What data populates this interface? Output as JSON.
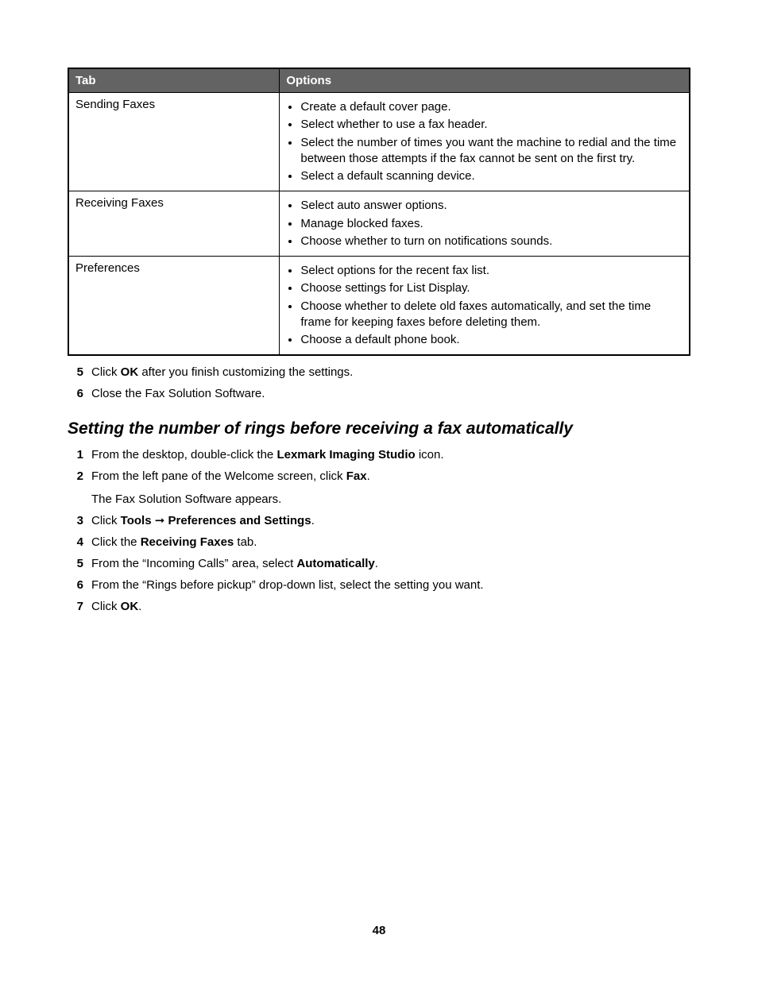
{
  "table": {
    "header_bg": "#636363",
    "header_fg": "#ffffff",
    "border_color": "#000000",
    "columns": [
      "Tab",
      "Options"
    ],
    "rows": [
      {
        "tab": "Sending Faxes",
        "options": [
          "Create a default cover page.",
          "Select whether to use a fax header.",
          "Select the number of times you want the machine to redial and the time between those attempts if the fax cannot be sent on the first try.",
          "Select a default scanning device."
        ]
      },
      {
        "tab": "Receiving Faxes",
        "options": [
          "Select auto answer options.",
          "Manage blocked faxes.",
          "Choose whether to turn on notifications sounds."
        ]
      },
      {
        "tab": "Preferences",
        "options": [
          "Select options for the recent fax list.",
          "Choose settings for List Display.",
          "Choose whether to delete old faxes automatically, and set the time frame for keeping faxes before deleting them.",
          "Choose a default phone book."
        ]
      }
    ]
  },
  "steps_top": [
    {
      "num": "5",
      "segments": [
        {
          "text": "Click ",
          "bold": false
        },
        {
          "text": "OK",
          "bold": true
        },
        {
          "text": " after you finish customizing the settings.",
          "bold": false
        }
      ]
    },
    {
      "num": "6",
      "segments": [
        {
          "text": "Close the Fax Solution Software.",
          "bold": false
        }
      ]
    }
  ],
  "section_heading": "Setting the number of rings before receiving a fax automatically",
  "steps_section": [
    {
      "num": "1",
      "segments": [
        {
          "text": "From the desktop, double-click the ",
          "bold": false
        },
        {
          "text": "Lexmark Imaging Studio",
          "bold": true
        },
        {
          "text": " icon.",
          "bold": false
        }
      ]
    },
    {
      "num": "2",
      "segments": [
        {
          "text": "From the left pane of the Welcome screen, click ",
          "bold": false
        },
        {
          "text": "Fax",
          "bold": true
        },
        {
          "text": ".",
          "bold": false
        }
      ],
      "sub": "The Fax Solution Software appears."
    },
    {
      "num": "3",
      "segments": [
        {
          "text": "Click ",
          "bold": false
        },
        {
          "text": "Tools",
          "bold": true
        },
        {
          "text": " ",
          "bold": false
        },
        {
          "text": "➞",
          "bold": false,
          "arrow": true
        },
        {
          "text": " ",
          "bold": false
        },
        {
          "text": "Preferences and Settings",
          "bold": true
        },
        {
          "text": ".",
          "bold": false
        }
      ]
    },
    {
      "num": "4",
      "segments": [
        {
          "text": "Click the ",
          "bold": false
        },
        {
          "text": "Receiving Faxes",
          "bold": true
        },
        {
          "text": " tab.",
          "bold": false
        }
      ]
    },
    {
      "num": "5",
      "segments": [
        {
          "text": "From the “Incoming Calls” area, select ",
          "bold": false
        },
        {
          "text": "Automatically",
          "bold": true
        },
        {
          "text": ".",
          "bold": false
        }
      ]
    },
    {
      "num": "6",
      "segments": [
        {
          "text": "From the “Rings before pickup” drop-down list, select the setting you want.",
          "bold": false
        }
      ]
    },
    {
      "num": "7",
      "segments": [
        {
          "text": "Click ",
          "bold": false
        },
        {
          "text": "OK",
          "bold": true
        },
        {
          "text": ".",
          "bold": false
        }
      ]
    }
  ],
  "page_number": "48"
}
